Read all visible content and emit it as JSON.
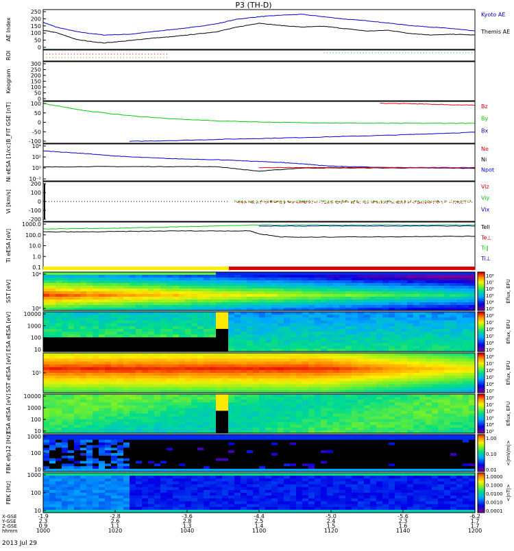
{
  "title": "P3 (TH-D)",
  "date": "2013 Jul 29",
  "colors": {
    "red": "#dd0000",
    "green": "#00cc00",
    "blue": "#0000cc",
    "black": "#000000"
  },
  "chart_data": [
    {
      "id": "ae",
      "type": "line",
      "ylabel": "AE Index",
      "yticks": [
        "250",
        "200",
        "150",
        "100",
        "50",
        "0"
      ],
      "ylim": [
        0,
        250
      ],
      "legend": [
        "Kyoto AE",
        "Themis AE"
      ],
      "series": [
        {
          "name": "Kyoto AE",
          "color": "#0000cc",
          "x": [
            0,
            0.03,
            0.08,
            0.14,
            0.2,
            0.25,
            0.3,
            0.35,
            0.4,
            0.45,
            0.5,
            0.55,
            0.6,
            0.65,
            0.7,
            0.75,
            0.8,
            0.85,
            0.9,
            0.95,
            1
          ],
          "values": [
            170,
            140,
            110,
            90,
            95,
            110,
            125,
            140,
            160,
            190,
            205,
            215,
            220,
            205,
            190,
            180,
            165,
            150,
            140,
            130,
            115
          ]
        },
        {
          "name": "Themis AE",
          "color": "#000000",
          "x": [
            0,
            0.03,
            0.08,
            0.14,
            0.2,
            0.25,
            0.3,
            0.35,
            0.4,
            0.45,
            0.5,
            0.55,
            0.6,
            0.65,
            0.7,
            0.75,
            0.8,
            0.85,
            0.9,
            0.95,
            1
          ],
          "values": [
            120,
            105,
            60,
            40,
            55,
            70,
            80,
            95,
            110,
            140,
            165,
            150,
            140,
            145,
            130,
            115,
            120,
            100,
            90,
            95,
            90
          ]
        }
      ]
    },
    {
      "id": "roi",
      "type": "table",
      "ylabel": "ROI",
      "yticks": [],
      "legend": []
    },
    {
      "id": "keogram",
      "type": "line",
      "ylabel": "Keogram",
      "yticks": [
        "300",
        "250",
        "200",
        "150",
        "100",
        "50",
        "0"
      ],
      "ylim": [
        0,
        300
      ],
      "legend": []
    },
    {
      "id": "bfit",
      "type": "line",
      "ylabel": "B_FIT GSE [nT]",
      "yticks": [
        "100",
        "50",
        "0",
        "-50",
        "-100"
      ],
      "ylim": [
        -110,
        110
      ],
      "legend": [
        "Bz",
        "By",
        "Bx"
      ],
      "series": [
        {
          "name": "Bz",
          "color": "#dd0000",
          "x": [
            0.78,
            0.85,
            0.9,
            0.95,
            1
          ],
          "values": [
            100,
            98,
            95,
            92,
            90
          ]
        },
        {
          "name": "By",
          "color": "#00cc00",
          "x": [
            0,
            0.1,
            0.2,
            0.3,
            0.4,
            0.5,
            0.6,
            0.7,
            0.8,
            0.9,
            1
          ],
          "values": [
            100,
            60,
            35,
            18,
            8,
            2,
            -2,
            -4,
            -5,
            -5,
            -5
          ]
        },
        {
          "name": "Bx",
          "color": "#0000cc",
          "x": [
            0.2,
            0.3,
            0.4,
            0.5,
            0.6,
            0.7,
            0.8,
            0.9,
            1
          ],
          "values": [
            -100,
            -96,
            -90,
            -85,
            -80,
            -74,
            -68,
            -60,
            -52
          ]
        }
      ]
    },
    {
      "id": "density",
      "type": "line",
      "ylabel": "Ni eESA [1/cc]",
      "yticks": [
        "10⁴",
        "10²",
        "10⁰",
        "10⁻²"
      ],
      "ylim": [
        -3,
        5
      ],
      "legend": [
        "Ne",
        "Ni",
        "Npot"
      ],
      "series": [
        {
          "name": "Ni",
          "color": "#000000",
          "x": [
            0,
            0.1,
            0.2,
            0.3,
            0.4,
            0.5,
            0.6,
            0.7,
            0.8,
            0.9,
            1
          ],
          "values": [
            0,
            0.1,
            0.1,
            0.1,
            0.1,
            -0.9,
            -0.2,
            -0.2,
            -0.2,
            -0.2,
            -0.2
          ]
        },
        {
          "name": "Npot",
          "color": "#0000cc",
          "x": [
            0,
            0.05,
            0.1,
            0.15,
            0.2,
            0.3,
            0.4,
            0.45,
            0.5,
            0.55,
            0.6,
            0.65,
            0.7,
            0.8,
            0.9,
            1
          ],
          "values": [
            3.5,
            3.2,
            2.9,
            2.5,
            2.2,
            1.8,
            1.6,
            1.4,
            1.2,
            1.0,
            0.7,
            0.3,
            0.1,
            -0.1,
            -0.2,
            -0.3
          ]
        },
        {
          "name": "Ne",
          "color": "#dd0000",
          "x": [
            0.5,
            0.6,
            0.7,
            0.8,
            0.9,
            1
          ],
          "values": [
            -0.1,
            -0.1,
            -0.1,
            -0.1,
            -0.1,
            -0.1
          ]
        }
      ]
    },
    {
      "id": "velocity",
      "type": "scatter",
      "ylabel": "Vi [km/s]",
      "yticks": [
        "200",
        "100",
        "0",
        "-100",
        "-200"
      ],
      "ylim": [
        -250,
        250
      ],
      "legend": [
        "Viz",
        "Viy",
        "Vix"
      ]
    },
    {
      "id": "temperature",
      "type": "line",
      "ylabel": "Ti eESA [eV]",
      "yticks": [
        "1000.0",
        "100.0",
        "10.0",
        "1.0",
        "0.1"
      ],
      "ylim": [
        -1.3,
        3.5
      ],
      "legend": [
        "Tell",
        "Te⊥",
        "Ti∥",
        "Ti⊥"
      ],
      "series": [
        {
          "name": "Ti∥",
          "color": "#00cc00",
          "x": [
            0,
            0.1,
            0.2,
            0.3,
            0.4,
            0.5,
            0.6,
            0.7,
            0.8,
            0.9,
            1
          ],
          "values": [
            2.8,
            2.85,
            2.9,
            3.0,
            3.1,
            3.2,
            3.2,
            3.2,
            3.2,
            3.2,
            3.2
          ]
        },
        {
          "name": "Tell",
          "color": "#000000",
          "x": [
            0,
            0.1,
            0.2,
            0.3,
            0.4,
            0.48,
            0.5,
            0.55,
            0.6,
            0.7,
            0.8,
            0.9,
            1
          ],
          "values": [
            2.5,
            2.5,
            2.55,
            2.6,
            2.6,
            2.6,
            2.3,
            2.0,
            1.95,
            2.0,
            2.0,
            2.05,
            2.05
          ]
        },
        {
          "name": "Ti⊥",
          "color": "#0000cc",
          "x": [
            0.5,
            0.6,
            0.7,
            0.8,
            0.9,
            1
          ],
          "values": [
            3.1,
            3.1,
            3.1,
            3.1,
            3.1,
            3.1
          ]
        }
      ]
    },
    {
      "id": "sst_ion",
      "type": "heatmap",
      "ylabel": "SST [eV]",
      "yticks": [
        "10⁴",
        "10⁶"
      ],
      "clabel": "Eflux, EFU",
      "cticks": [
        "10⁸",
        "10⁷",
        "10⁶",
        "10⁵",
        "10⁴",
        "10³"
      ]
    },
    {
      "id": "esa_ion",
      "type": "heatmap",
      "ylabel": "ESA eESA [eV]",
      "yticks": [
        "10000",
        "1000",
        "100",
        "10"
      ],
      "clabel": "Eflux, EFU",
      "cticks": [
        "10⁸",
        "10⁷",
        "10⁶",
        "10⁵",
        "10⁴",
        "10³"
      ]
    },
    {
      "id": "sst_e",
      "type": "heatmap",
      "ylabel": "SST eESA [eV]",
      "yticks": [
        "10⁵"
      ],
      "clabel": "Eflux, EFU",
      "cticks": [
        "10⁸",
        "10⁷",
        "10⁶",
        "10⁵",
        "10⁴",
        "10³"
      ]
    },
    {
      "id": "esa_e",
      "type": "heatmap",
      "ylabel": "ESA eESA [eV]",
      "yticks": [
        "10000",
        "1000",
        "100",
        "10"
      ],
      "clabel": "Eflux, EFU",
      "cticks": [
        "10⁸",
        "10⁷",
        "10⁶",
        "10⁵",
        "10⁴",
        "10³"
      ]
    },
    {
      "id": "fbk_b",
      "type": "heatmap",
      "ylabel": "FBK efp12 [Hz]",
      "yticks": [
        "1000",
        "100",
        "10"
      ],
      "clabel": "<|mV/m|>",
      "cticks": [
        "1.00",
        "0.10",
        "0.01"
      ]
    },
    {
      "id": "fbk_s",
      "type": "heatmap",
      "ylabel": "FBK [Hz]",
      "yticks": [
        "1000",
        "100",
        "10"
      ],
      "clabel": "<|nT|>",
      "cticks": [
        "1.0000",
        "0.1000",
        "0.0100",
        "0.0010",
        "0.0001"
      ]
    }
  ],
  "xaxis": {
    "row_labels": [
      "X-GSE",
      "Y-GSE",
      "Z-GSE",
      "hhmm"
    ],
    "columns": [
      {
        "x": "-1.9",
        "y": "2.3",
        "z": "0.9",
        "t": "1000"
      },
      {
        "x": "-2.8",
        "y": "2.6",
        "z": "1.1",
        "t": "1020"
      },
      {
        "x": "-3.6",
        "y": "2.8",
        "z": "1.3",
        "t": "1040"
      },
      {
        "x": "-4.4",
        "y": "2.5",
        "z": "1.4",
        "t": "1100"
      },
      {
        "x": "-5.0",
        "y": "2.4",
        "z": "1.5",
        "t": "1120"
      },
      {
        "x": "-5.6",
        "y": "2.3",
        "z": "1.6",
        "t": "1140"
      },
      {
        "x": "-6.2",
        "y": "1.7",
        "z": "1.7",
        "t": "1200"
      }
    ]
  }
}
